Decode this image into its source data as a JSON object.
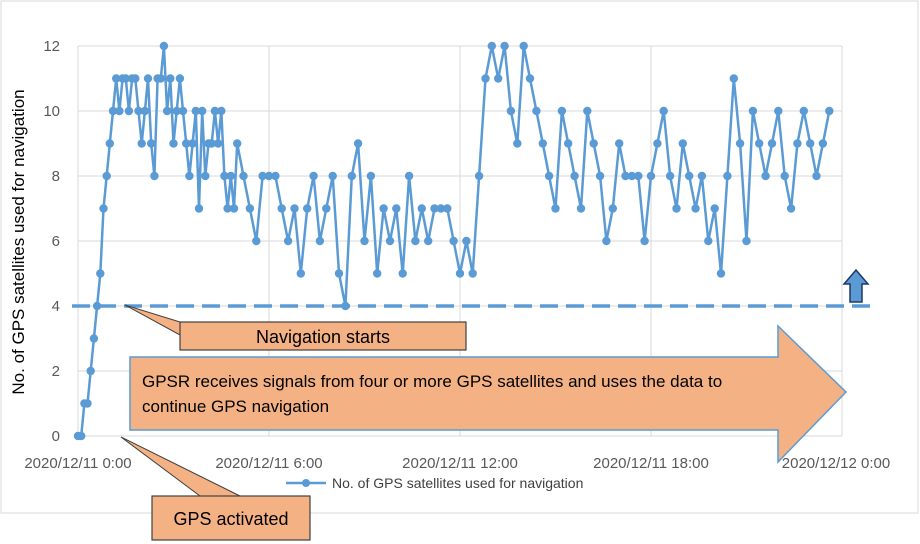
{
  "chart_data": {
    "type": "line",
    "xlabel": "",
    "ylabel": "No. of GPS satellites used for navigation",
    "xlim_hours": [
      0,
      24
    ],
    "ylim": [
      0,
      12
    ],
    "x_tick_labels": [
      "2020/12/11 0:00",
      "2020/12/11 6:00",
      "2020/12/11 12:00",
      "2020/12/11 18:00",
      "2020/12/12 0:00"
    ],
    "y_ticks": [
      0,
      2,
      4,
      6,
      8,
      10,
      12
    ],
    "grid": true,
    "legend": "bottom",
    "series": [
      {
        "name": "No. of GPS satellites used for navigation",
        "color": "#5B9BD5",
        "x_hours": [
          0.0,
          0.1,
          0.2,
          0.3,
          0.4,
          0.5,
          0.6,
          0.7,
          0.8,
          0.9,
          1.0,
          1.1,
          1.2,
          1.3,
          1.4,
          1.5,
          1.6,
          1.7,
          1.8,
          1.9,
          2.0,
          2.1,
          2.2,
          2.3,
          2.4,
          2.5,
          2.6,
          2.7,
          2.8,
          2.9,
          3.0,
          3.1,
          3.2,
          3.3,
          3.4,
          3.5,
          3.6,
          3.7,
          3.8,
          3.9,
          4.0,
          4.1,
          4.2,
          4.3,
          4.4,
          4.5,
          4.6,
          4.7,
          4.8,
          4.9,
          5.0,
          5.2,
          5.4,
          5.6,
          5.8,
          6.0,
          6.2,
          6.4,
          6.6,
          6.8,
          7.0,
          7.2,
          7.4,
          7.6,
          7.8,
          8.0,
          8.2,
          8.4,
          8.6,
          8.8,
          9.0,
          9.2,
          9.4,
          9.6,
          9.8,
          10.0,
          10.2,
          10.4,
          10.6,
          10.8,
          11.0,
          11.2,
          11.4,
          11.6,
          11.8,
          12.0,
          12.2,
          12.4,
          12.6,
          12.8,
          13.0,
          13.2,
          13.4,
          13.6,
          13.8,
          14.0,
          14.2,
          14.4,
          14.6,
          14.8,
          15.0,
          15.2,
          15.4,
          15.6,
          15.8,
          16.0,
          16.2,
          16.4,
          16.6,
          16.8,
          17.0,
          17.2,
          17.4,
          17.6,
          17.8,
          18.0,
          18.2,
          18.4,
          18.6,
          18.8,
          19.0,
          19.2,
          19.4,
          19.6,
          19.8,
          20.0,
          20.2,
          20.4,
          20.6,
          20.8,
          21.0,
          21.2,
          21.4,
          21.6,
          21.8,
          22.0,
          22.2,
          22.4,
          22.6,
          22.8,
          23.0,
          23.2,
          23.4,
          23.6
        ],
        "values": [
          0,
          0,
          1,
          1,
          2,
          3,
          4,
          5,
          7,
          8,
          9,
          10,
          11,
          10,
          11,
          11,
          10,
          11,
          11,
          10,
          9,
          10,
          11,
          9,
          8,
          11,
          11,
          12,
          10,
          11,
          9,
          10,
          11,
          10,
          9,
          8,
          9,
          10,
          7,
          10,
          8,
          9,
          9,
          10,
          9,
          10,
          8,
          7,
          8,
          7,
          9,
          8,
          7,
          6,
          8,
          8,
          8,
          7,
          6,
          7,
          5,
          7,
          8,
          6,
          7,
          8,
          5,
          4,
          8,
          9,
          6,
          8,
          5,
          7,
          6,
          7,
          5,
          8,
          6,
          7,
          6,
          7,
          7,
          7,
          6,
          5,
          6,
          5,
          8,
          11,
          12,
          11,
          12,
          10,
          9,
          12,
          11,
          10,
          9,
          8,
          7,
          10,
          9,
          8,
          7,
          10,
          9,
          8,
          6,
          7,
          9,
          8,
          8,
          8,
          6,
          8,
          9,
          10,
          8,
          7,
          9,
          8,
          7,
          8,
          6,
          7,
          5,
          8,
          11,
          9,
          6,
          10,
          9,
          8,
          9,
          10,
          8,
          7,
          9,
          10,
          9,
          8,
          9,
          10
        ]
      }
    ],
    "annotations": [
      {
        "text": "Navigation starts"
      },
      {
        "text": "GPS activated"
      },
      {
        "text": "GPSR receives  signals from four or more GPS satellites and uses the data to continue GPS navigation"
      }
    ],
    "threshold_value": 4,
    "colors": {
      "series": "#5B9BD5",
      "callout_fill": "#F4B183",
      "callout_border": "#404040",
      "grid": "#D9D9D9",
      "threshold": "#5B9BD5"
    }
  }
}
